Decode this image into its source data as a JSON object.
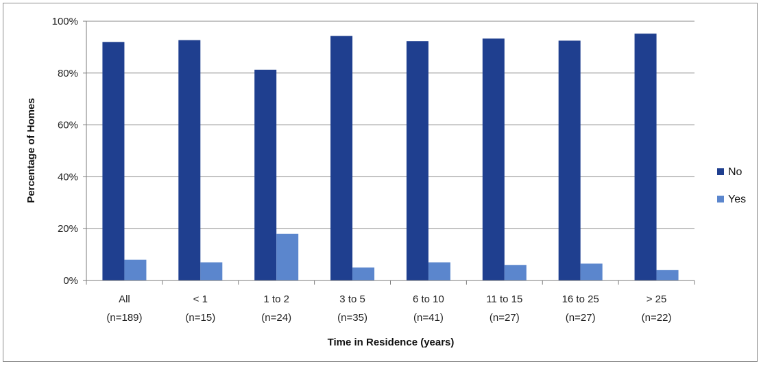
{
  "chart_data": {
    "type": "bar",
    "title": "",
    "xlabel": "Time in Residence (years)",
    "ylabel": "Percentage of Homes",
    "ylim": [
      0,
      100
    ],
    "yticks": [
      "0%",
      "20%",
      "40%",
      "60%",
      "80%",
      "100%"
    ],
    "categories": [
      {
        "line1": "All",
        "line2": "(n=189)"
      },
      {
        "line1": "< 1",
        "line2": "(n=15)"
      },
      {
        "line1": "1 to 2",
        "line2": "(n=24)"
      },
      {
        "line1": "3 to 5",
        "line2": "(n=35)"
      },
      {
        "line1": "6 to 10",
        "line2": "(n=41)"
      },
      {
        "line1": "11 to 15",
        "line2": "(n=27)"
      },
      {
        "line1": "16 to 25",
        "line2": "(n=27)"
      },
      {
        "line1": "> 25",
        "line2": "(n=22)"
      }
    ],
    "series": [
      {
        "name": "No",
        "color": "#1f3f8f",
        "values": [
          92,
          92.7,
          81.3,
          94.3,
          92.3,
          93.3,
          92.5,
          95.2
        ]
      },
      {
        "name": "Yes",
        "color": "#5b86cd",
        "values": [
          8,
          7,
          18,
          5,
          7,
          6,
          6.5,
          4
        ]
      }
    ],
    "grid": true,
    "legend_position": "right"
  }
}
